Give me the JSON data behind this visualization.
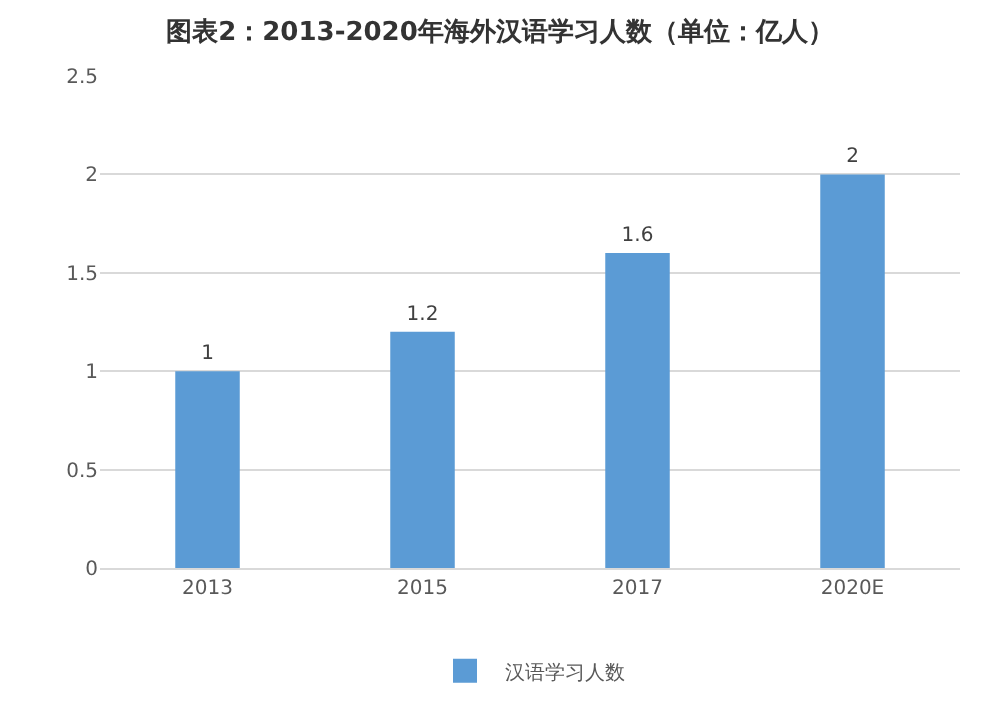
{
  "chart_data": {
    "type": "bar",
    "title": "图表2：2013-2020年海外汉语学习人数（单位：亿人）",
    "categories": [
      "2013",
      "2015",
      "2017",
      "2020E"
    ],
    "series": [
      {
        "name": "汉语学习人数",
        "color": "#5b9bd5",
        "values": [
          1,
          1.2,
          1.6,
          2
        ]
      }
    ],
    "ylim": [
      0,
      2.5
    ],
    "yticks": [
      0,
      0.5,
      1,
      1.5,
      2,
      2.5
    ],
    "grid": "y",
    "legend": "bottom",
    "data_labels": true
  }
}
